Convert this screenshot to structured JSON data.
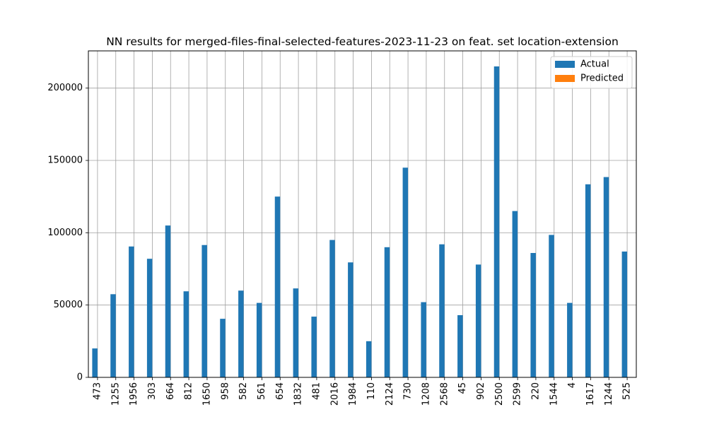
{
  "chart_data": {
    "type": "bar",
    "title": "NN results for merged-files-final-selected-features-2023-11-23 on feat. set location-extension",
    "xlabel": "",
    "ylabel": "",
    "categories": [
      "473",
      "1255",
      "1956",
      "303",
      "664",
      "812",
      "1650",
      "958",
      "582",
      "561",
      "654",
      "1832",
      "481",
      "2016",
      "1984",
      "110",
      "2124",
      "730",
      "1208",
      "2568",
      "45",
      "902",
      "2500",
      "2599",
      "220",
      "1544",
      "4",
      "1617",
      "1244",
      "525"
    ],
    "series": [
      {
        "name": "Actual",
        "color": "#1f77b4",
        "values": [
          20000,
          57500,
          90500,
          82000,
          105000,
          59500,
          91500,
          40500,
          60000,
          51500,
          125000,
          61500,
          42000,
          95000,
          79500,
          25000,
          90000,
          145000,
          52000,
          92000,
          43000,
          78000,
          215000,
          115000,
          86000,
          98500,
          51500,
          133500,
          138500,
          87000
        ]
      },
      {
        "name": "Predicted",
        "color": "#ff7f0e",
        "values": [
          0,
          0,
          0,
          0,
          0,
          0,
          0,
          0,
          0,
          0,
          0,
          0,
          0,
          0,
          0,
          0,
          0,
          0,
          0,
          0,
          0,
          0,
          0,
          0,
          0,
          0,
          0,
          0,
          0,
          0
        ]
      }
    ],
    "yticks": [
      0,
      50000,
      100000,
      150000,
      200000
    ],
    "ylim": [
      0,
      225750
    ],
    "grid": true,
    "legend_position": "upper right"
  }
}
